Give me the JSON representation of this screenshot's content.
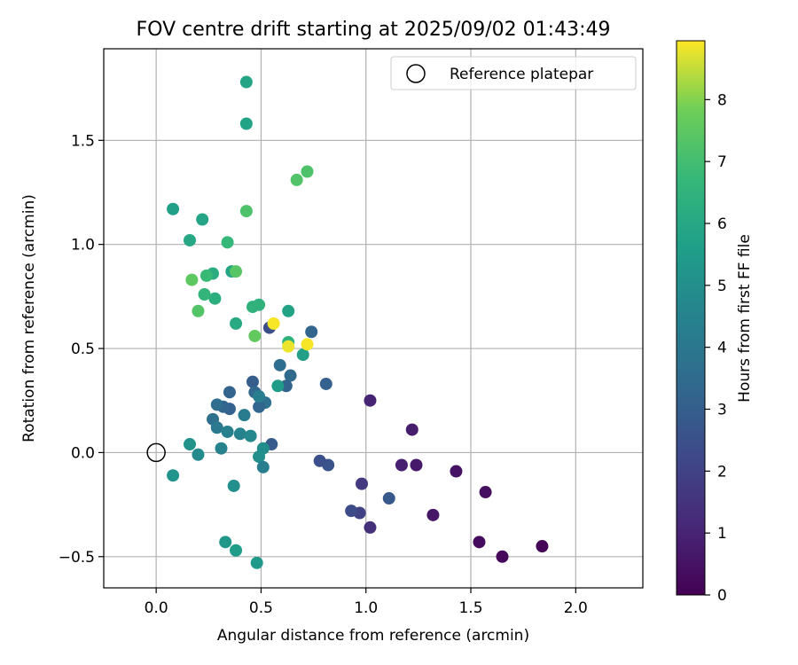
{
  "chart_data": {
    "type": "scatter",
    "title": "FOV centre drift starting at 2025/09/02 01:43:49",
    "xlabel": "Angular distance from reference (arcmin)",
    "ylabel": "Rotation from reference (arcmin)",
    "xlim": [
      -0.25,
      2.32
    ],
    "ylim": [
      -0.65,
      1.94
    ],
    "xticks": [
      0.0,
      0.5,
      1.0,
      1.5,
      2.0
    ],
    "xtick_labels": [
      "0.0",
      "0.5",
      "1.0",
      "1.5",
      "2.0"
    ],
    "yticks": [
      -0.5,
      0.0,
      0.5,
      1.0,
      1.5
    ],
    "ytick_labels": [
      "−0.5",
      "0.0",
      "0.5",
      "1.0",
      "1.5"
    ],
    "grid": true,
    "legend_position": "top-right",
    "legend": [
      "Reference platepar"
    ],
    "reference_point": {
      "x": 0.0,
      "y": 0.0,
      "marker": "open-circle"
    },
    "colormap": "viridis",
    "colorbar": {
      "label": "Hours from first FF file",
      "min": 0,
      "max": 8.95,
      "ticks": [
        0,
        1,
        2,
        3,
        4,
        5,
        6,
        7,
        8
      ],
      "tick_labels": [
        "0",
        "1",
        "2",
        "3",
        "4",
        "5",
        "6",
        "7",
        "8"
      ]
    },
    "points": [
      {
        "x": 1.84,
        "y": -0.45,
        "c": 0.1
      },
      {
        "x": 1.65,
        "y": -0.5,
        "c": 0.2
      },
      {
        "x": 1.54,
        "y": -0.43,
        "c": 0.3
      },
      {
        "x": 1.57,
        "y": -0.19,
        "c": 0.4
      },
      {
        "x": 1.43,
        "y": -0.09,
        "c": 0.5
      },
      {
        "x": 1.32,
        "y": -0.3,
        "c": 0.6
      },
      {
        "x": 1.24,
        "y": -0.06,
        "c": 0.7
      },
      {
        "x": 1.22,
        "y": 0.11,
        "c": 0.8
      },
      {
        "x": 1.17,
        "y": -0.06,
        "c": 0.9
      },
      {
        "x": 1.02,
        "y": 0.25,
        "c": 1.0
      },
      {
        "x": 1.02,
        "y": -0.36,
        "c": 1.4
      },
      {
        "x": 0.98,
        "y": -0.15,
        "c": 1.7
      },
      {
        "x": 0.97,
        "y": -0.29,
        "c": 2.0
      },
      {
        "x": 0.93,
        "y": -0.28,
        "c": 2.3
      },
      {
        "x": 1.11,
        "y": -0.22,
        "c": 2.8
      },
      {
        "x": 0.82,
        "y": -0.06,
        "c": 2.6
      },
      {
        "x": 0.78,
        "y": -0.04,
        "c": 2.5
      },
      {
        "x": 0.81,
        "y": 0.33,
        "c": 3.1
      },
      {
        "x": 0.74,
        "y": 0.58,
        "c": 3.3
      },
      {
        "x": 0.54,
        "y": 0.6,
        "c": 2.4
      },
      {
        "x": 0.64,
        "y": 0.37,
        "c": 3.5
      },
      {
        "x": 0.59,
        "y": 0.42,
        "c": 3.6
      },
      {
        "x": 0.62,
        "y": 0.32,
        "c": 3.2
      },
      {
        "x": 0.55,
        "y": 0.04,
        "c": 2.9
      },
      {
        "x": 0.52,
        "y": 0.24,
        "c": 3.7
      },
      {
        "x": 0.49,
        "y": 0.22,
        "c": 3.3
      },
      {
        "x": 0.46,
        "y": 0.34,
        "c": 3.0
      },
      {
        "x": 0.47,
        "y": 0.29,
        "c": 3.4
      },
      {
        "x": 0.49,
        "y": 0.27,
        "c": 4.3
      },
      {
        "x": 0.35,
        "y": 0.29,
        "c": 3.2
      },
      {
        "x": 0.35,
        "y": 0.21,
        "c": 3.1
      },
      {
        "x": 0.32,
        "y": 0.22,
        "c": 3.3
      },
      {
        "x": 0.29,
        "y": 0.23,
        "c": 3.6
      },
      {
        "x": 0.27,
        "y": 0.16,
        "c": 3.7
      },
      {
        "x": 0.29,
        "y": 0.12,
        "c": 4.1
      },
      {
        "x": 0.42,
        "y": 0.18,
        "c": 4.2
      },
      {
        "x": 0.34,
        "y": 0.1,
        "c": 4.4
      },
      {
        "x": 0.4,
        "y": 0.09,
        "c": 4.5
      },
      {
        "x": 0.45,
        "y": 0.08,
        "c": 4.7
      },
      {
        "x": 0.31,
        "y": 0.02,
        "c": 4.5
      },
      {
        "x": 0.51,
        "y": 0.02,
        "c": 4.9
      },
      {
        "x": 0.49,
        "y": -0.02,
        "c": 5.0
      },
      {
        "x": 0.51,
        "y": -0.07,
        "c": 4.3
      },
      {
        "x": 0.16,
        "y": 0.04,
        "c": 5.1
      },
      {
        "x": 0.2,
        "y": -0.01,
        "c": 4.8
      },
      {
        "x": 0.08,
        "y": -0.11,
        "c": 5.2
      },
      {
        "x": 0.37,
        "y": -0.16,
        "c": 5.0
      },
      {
        "x": 0.33,
        "y": -0.43,
        "c": 5.3
      },
      {
        "x": 0.38,
        "y": -0.47,
        "c": 5.5
      },
      {
        "x": 0.48,
        "y": -0.53,
        "c": 5.4
      },
      {
        "x": 0.58,
        "y": 0.32,
        "c": 5.5
      },
      {
        "x": 0.7,
        "y": 0.47,
        "c": 5.7
      },
      {
        "x": 0.63,
        "y": 0.68,
        "c": 5.8
      },
      {
        "x": 0.63,
        "y": 0.53,
        "c": 6.5
      },
      {
        "x": 0.49,
        "y": 0.71,
        "c": 6.4
      },
      {
        "x": 0.46,
        "y": 0.7,
        "c": 6.5
      },
      {
        "x": 0.38,
        "y": 0.62,
        "c": 6.1
      },
      {
        "x": 0.36,
        "y": 0.87,
        "c": 5.9
      },
      {
        "x": 0.27,
        "y": 0.86,
        "c": 6.2
      },
      {
        "x": 0.28,
        "y": 0.74,
        "c": 6.3
      },
      {
        "x": 0.23,
        "y": 0.76,
        "c": 6.6
      },
      {
        "x": 0.24,
        "y": 0.85,
        "c": 6.8
      },
      {
        "x": 0.16,
        "y": 1.02,
        "c": 6.0
      },
      {
        "x": 0.08,
        "y": 1.17,
        "c": 5.7
      },
      {
        "x": 0.22,
        "y": 1.12,
        "c": 5.9
      },
      {
        "x": 0.34,
        "y": 1.01,
        "c": 6.7
      },
      {
        "x": 0.43,
        "y": 1.16,
        "c": 7.2
      },
      {
        "x": 0.38,
        "y": 0.87,
        "c": 7.4
      },
      {
        "x": 0.17,
        "y": 0.83,
        "c": 7.5
      },
      {
        "x": 0.2,
        "y": 0.68,
        "c": 7.3
      },
      {
        "x": 0.47,
        "y": 0.56,
        "c": 7.6
      },
      {
        "x": 0.67,
        "y": 1.31,
        "c": 7.3
      },
      {
        "x": 0.72,
        "y": 1.35,
        "c": 7.2
      },
      {
        "x": 0.43,
        "y": 1.58,
        "c": 5.8
      },
      {
        "x": 0.43,
        "y": 1.78,
        "c": 5.9
      },
      {
        "x": 0.56,
        "y": 0.62,
        "c": 8.9
      },
      {
        "x": 0.63,
        "y": 0.51,
        "c": 8.8
      },
      {
        "x": 0.72,
        "y": 0.52,
        "c": 8.9
      }
    ]
  }
}
